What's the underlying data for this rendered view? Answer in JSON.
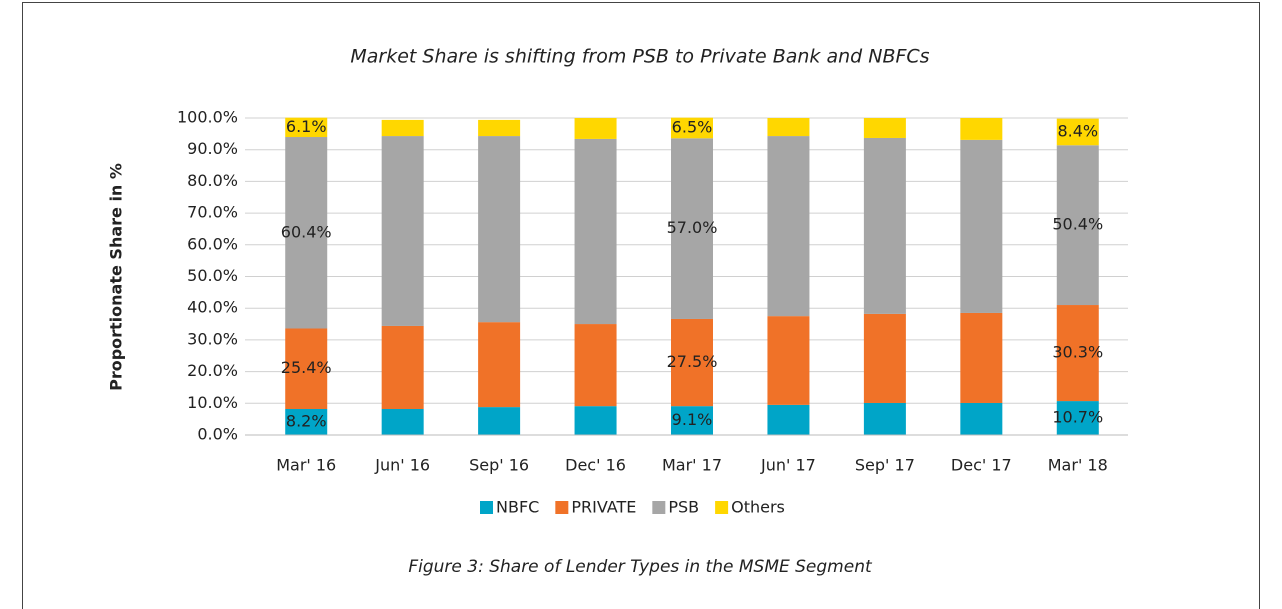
{
  "chart_data": {
    "type": "stacked_bar",
    "title": "Market Share is shifting from  PSB to Private Bank and NBFCs",
    "y_label": "Proportionate Share in %",
    "caption": "Figure 3: Share of Lender Types in the MSME Segment",
    "categories": [
      "Mar' 16",
      "Jun' 16",
      "Sep' 16",
      "Dec' 16",
      "Mar' 17",
      "Jun' 17",
      "Sep' 17",
      "Dec' 17",
      "Mar' 18"
    ],
    "series": [
      {
        "name": "NBFC",
        "color": "#00a5c8",
        "values": [
          8.2,
          8.2,
          8.8,
          9.1,
          9.1,
          9.5,
          10.1,
          10.1,
          10.7
        ],
        "value_labels": [
          "8.2%",
          null,
          null,
          null,
          "9.1%",
          null,
          null,
          null,
          "10.7%"
        ]
      },
      {
        "name": "PRIVATE",
        "color": "#f07228",
        "values": [
          25.4,
          26.2,
          26.8,
          25.9,
          27.5,
          28.0,
          28.1,
          28.4,
          30.3
        ],
        "value_labels": [
          "25.4%",
          null,
          null,
          null,
          "27.5%",
          null,
          null,
          null,
          "30.3%"
        ]
      },
      {
        "name": "PSB",
        "color": "#a6a6a6",
        "values": [
          60.4,
          59.9,
          58.7,
          58.4,
          57.0,
          56.8,
          55.5,
          54.6,
          50.4
        ],
        "value_labels": [
          "60.4%",
          null,
          null,
          null,
          "57.0%",
          null,
          null,
          null,
          "50.4%"
        ]
      },
      {
        "name": "Others",
        "color": "#ffd700",
        "values": [
          6.1,
          5.1,
          5.1,
          6.6,
          6.5,
          5.7,
          6.3,
          6.9,
          8.4
        ],
        "value_labels": [
          "6.1%",
          null,
          null,
          null,
          "6.5%",
          null,
          null,
          null,
          "8.4%"
        ]
      }
    ],
    "ylim": [
      0,
      100
    ],
    "yticks": [
      {
        "value": 0,
        "label": "0.0%"
      },
      {
        "value": 10,
        "label": "10.0%"
      },
      {
        "value": 20,
        "label": "20.0%"
      },
      {
        "value": 30,
        "label": "30.0%"
      },
      {
        "value": 40,
        "label": "40.0%"
      },
      {
        "value": 50,
        "label": "50.0%"
      },
      {
        "value": 60,
        "label": "60.0%"
      },
      {
        "value": 70,
        "label": "70.0%"
      },
      {
        "value": 80,
        "label": "80.0%"
      },
      {
        "value": 90,
        "label": "90.0%"
      },
      {
        "value": 100,
        "label": "100.0%"
      }
    ],
    "grid": true,
    "legend": "bottom"
  }
}
